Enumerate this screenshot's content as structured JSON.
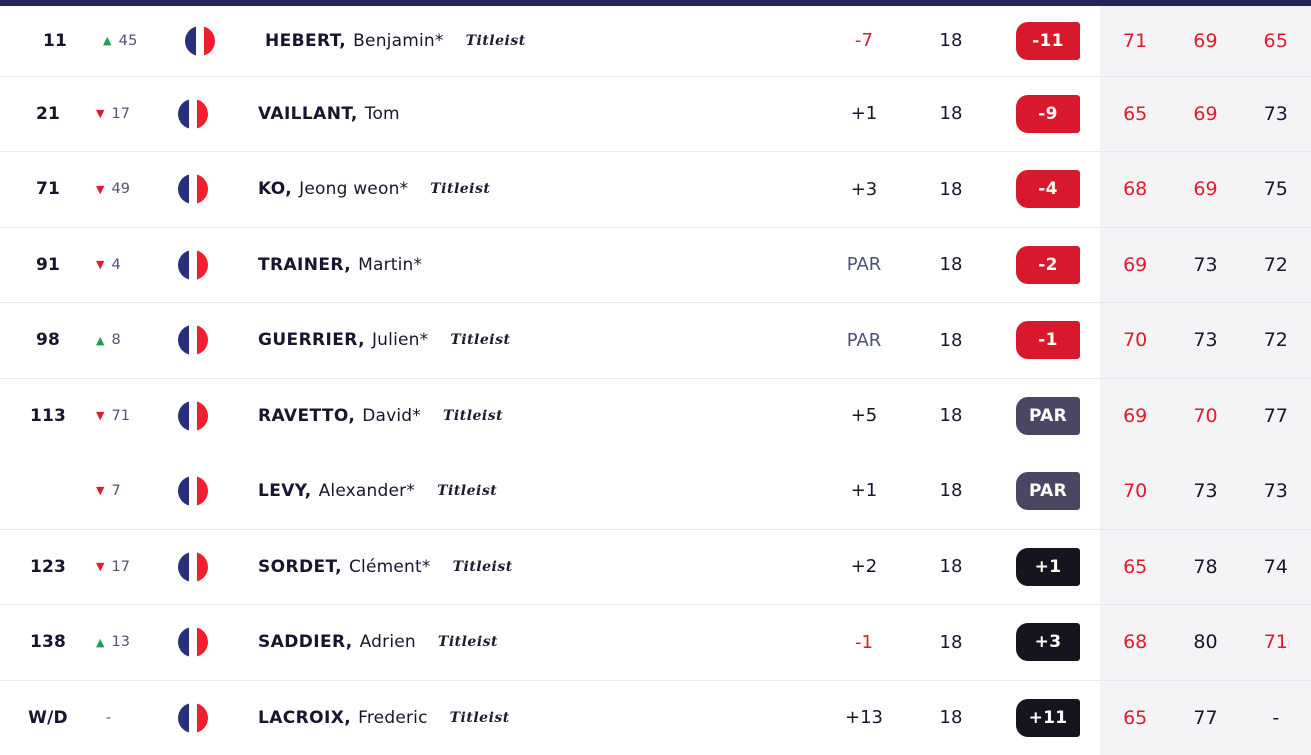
{
  "colors": {
    "top_bar": "#242457",
    "divider": "#e9e9ed",
    "panel": "#f4f3f6",
    "navy_text": "#16162e",
    "slate_text": "#4f5278",
    "red_text": "#e11b2c",
    "green": "#16a05b",
    "red_badge": "#d8182c",
    "slate_badge": "#4b4763",
    "dark_badge": "#15141f",
    "flag_blue": "#26307c",
    "flag_red": "#ef1f2d"
  },
  "table": {
    "rows": [
      {
        "pos": "11",
        "move": {
          "dir": "up",
          "value": "45"
        },
        "country": "France",
        "name_last": "HEBERT,",
        "name_first": "Benjamin*",
        "sponsor": "Titleist",
        "today": {
          "value": "-7",
          "color": "red"
        },
        "holes": "18",
        "total": {
          "value": "-11",
          "style": "red"
        },
        "rounds": [
          {
            "value": "71",
            "color": "red"
          },
          {
            "value": "69",
            "color": "red"
          },
          {
            "value": "65",
            "color": "red"
          }
        ],
        "divider": true
      },
      {
        "pos": "21",
        "move": {
          "dir": "down",
          "value": "17"
        },
        "country": "France",
        "name_last": "VAILLANT,",
        "name_first": "Tom",
        "sponsor": "",
        "today": {
          "value": "+1",
          "color": "navy"
        },
        "holes": "18",
        "total": {
          "value": "-9",
          "style": "red"
        },
        "rounds": [
          {
            "value": "65",
            "color": "red"
          },
          {
            "value": "69",
            "color": "red"
          },
          {
            "value": "73",
            "color": "navy"
          }
        ],
        "divider": true
      },
      {
        "pos": "71",
        "move": {
          "dir": "down",
          "value": "49"
        },
        "country": "France",
        "name_last": "KO,",
        "name_first": "Jeong weon*",
        "sponsor": "Titleist",
        "today": {
          "value": "+3",
          "color": "navy"
        },
        "holes": "18",
        "total": {
          "value": "-4",
          "style": "red"
        },
        "rounds": [
          {
            "value": "68",
            "color": "red"
          },
          {
            "value": "69",
            "color": "red"
          },
          {
            "value": "75",
            "color": "navy"
          }
        ],
        "divider": true
      },
      {
        "pos": "91",
        "move": {
          "dir": "down",
          "value": "4"
        },
        "country": "France",
        "name_last": "TRAINER,",
        "name_first": "Martin*",
        "sponsor": "",
        "today": {
          "value": "PAR",
          "color": "slate"
        },
        "holes": "18",
        "total": {
          "value": "-2",
          "style": "red"
        },
        "rounds": [
          {
            "value": "69",
            "color": "red"
          },
          {
            "value": "73",
            "color": "navy"
          },
          {
            "value": "72",
            "color": "navy"
          }
        ],
        "divider": true
      },
      {
        "pos": "98",
        "move": {
          "dir": "up",
          "value": "8"
        },
        "country": "France",
        "name_last": "GUERRIER,",
        "name_first": "Julien*",
        "sponsor": "Titleist",
        "today": {
          "value": "PAR",
          "color": "slate"
        },
        "holes": "18",
        "total": {
          "value": "-1",
          "style": "red"
        },
        "rounds": [
          {
            "value": "70",
            "color": "red"
          },
          {
            "value": "73",
            "color": "navy"
          },
          {
            "value": "72",
            "color": "navy"
          }
        ],
        "divider": true
      },
      {
        "pos": "113",
        "move": {
          "dir": "down",
          "value": "71"
        },
        "country": "France",
        "name_last": "RAVETTO,",
        "name_first": "David*",
        "sponsor": "Titleist",
        "today": {
          "value": "+5",
          "color": "navy"
        },
        "holes": "18",
        "total": {
          "value": "PAR",
          "style": "slate"
        },
        "rounds": [
          {
            "value": "69",
            "color": "red"
          },
          {
            "value": "70",
            "color": "red"
          },
          {
            "value": "77",
            "color": "navy"
          }
        ],
        "divider": true
      },
      {
        "pos": "",
        "move": {
          "dir": "down",
          "value": "7"
        },
        "country": "France",
        "name_last": "LEVY,",
        "name_first": "Alexander*",
        "sponsor": "Titleist",
        "today": {
          "value": "+1",
          "color": "navy"
        },
        "holes": "18",
        "total": {
          "value": "PAR",
          "style": "slate"
        },
        "rounds": [
          {
            "value": "70",
            "color": "red"
          },
          {
            "value": "73",
            "color": "navy"
          },
          {
            "value": "73",
            "color": "navy"
          }
        ],
        "divider": false
      },
      {
        "pos": "123",
        "move": {
          "dir": "down",
          "value": "17"
        },
        "country": "France",
        "name_last": "SORDET,",
        "name_first": "Clément*",
        "sponsor": "Titleist",
        "today": {
          "value": "+2",
          "color": "navy"
        },
        "holes": "18",
        "total": {
          "value": "+1",
          "style": "dark"
        },
        "rounds": [
          {
            "value": "65",
            "color": "red"
          },
          {
            "value": "78",
            "color": "navy"
          },
          {
            "value": "74",
            "color": "navy"
          }
        ],
        "divider": true
      },
      {
        "pos": "138",
        "move": {
          "dir": "up",
          "value": "13"
        },
        "country": "France",
        "name_last": "SADDIER,",
        "name_first": "Adrien",
        "sponsor": "Titleist",
        "today": {
          "value": "-1",
          "color": "red"
        },
        "holes": "18",
        "total": {
          "value": "+3",
          "style": "dark"
        },
        "rounds": [
          {
            "value": "68",
            "color": "red"
          },
          {
            "value": "80",
            "color": "navy"
          },
          {
            "value": "71",
            "color": "red"
          }
        ],
        "divider": true
      },
      {
        "pos": "W/D",
        "move": {
          "dir": "none",
          "value": "-"
        },
        "country": "France",
        "name_last": "LACROIX,",
        "name_first": "Frederic",
        "sponsor": "Titleist",
        "today": {
          "value": "+13",
          "color": "navy"
        },
        "holes": "18",
        "total": {
          "value": "+11",
          "style": "dark"
        },
        "rounds": [
          {
            "value": "65",
            "color": "red"
          },
          {
            "value": "77",
            "color": "navy"
          },
          {
            "value": "-",
            "color": "navy"
          }
        ],
        "divider": true
      }
    ]
  }
}
